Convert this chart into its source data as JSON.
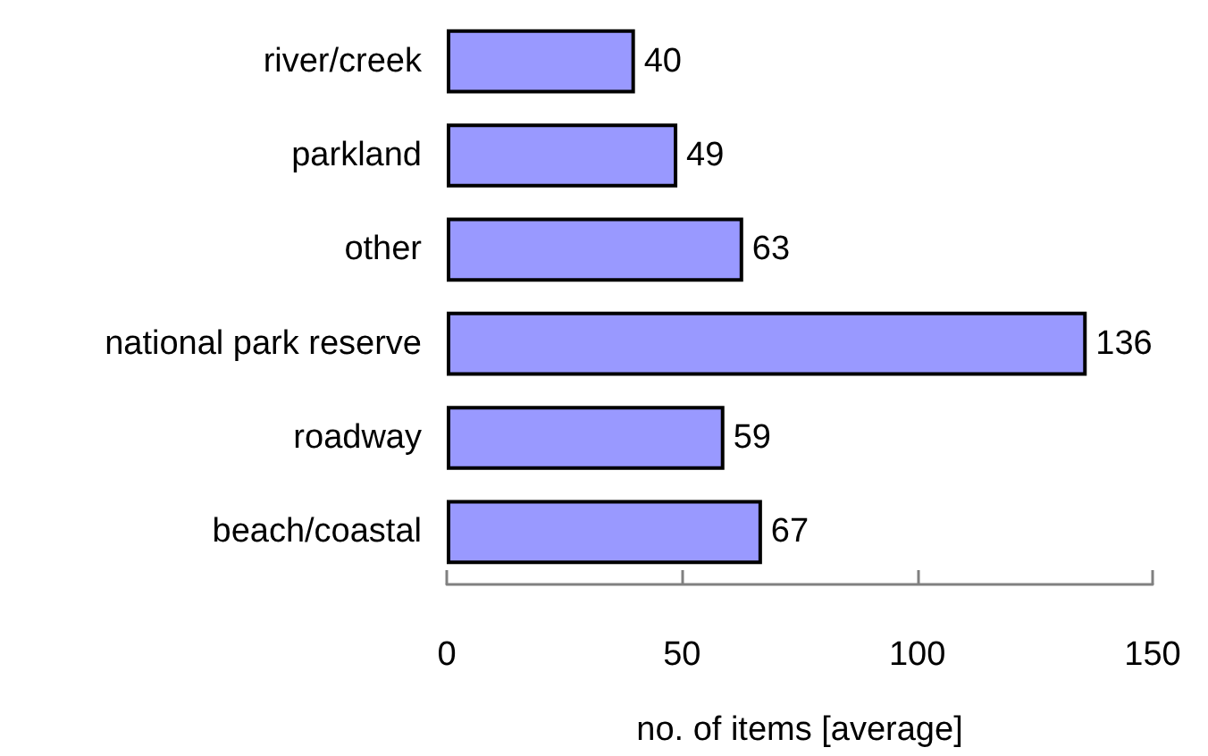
{
  "chart_data": {
    "type": "bar",
    "orientation": "horizontal",
    "xlabel": "no. of items [average]",
    "categories": [
      "river/creek",
      "parkland",
      "other",
      "national park reserve",
      "roadway",
      "beach/coastal"
    ],
    "values": [
      40,
      49,
      63,
      136,
      59,
      67
    ],
    "color": "#9999ff",
    "xlim": [
      0,
      150
    ],
    "xticks": [
      0,
      50,
      100,
      150
    ],
    "data_labels": true
  }
}
